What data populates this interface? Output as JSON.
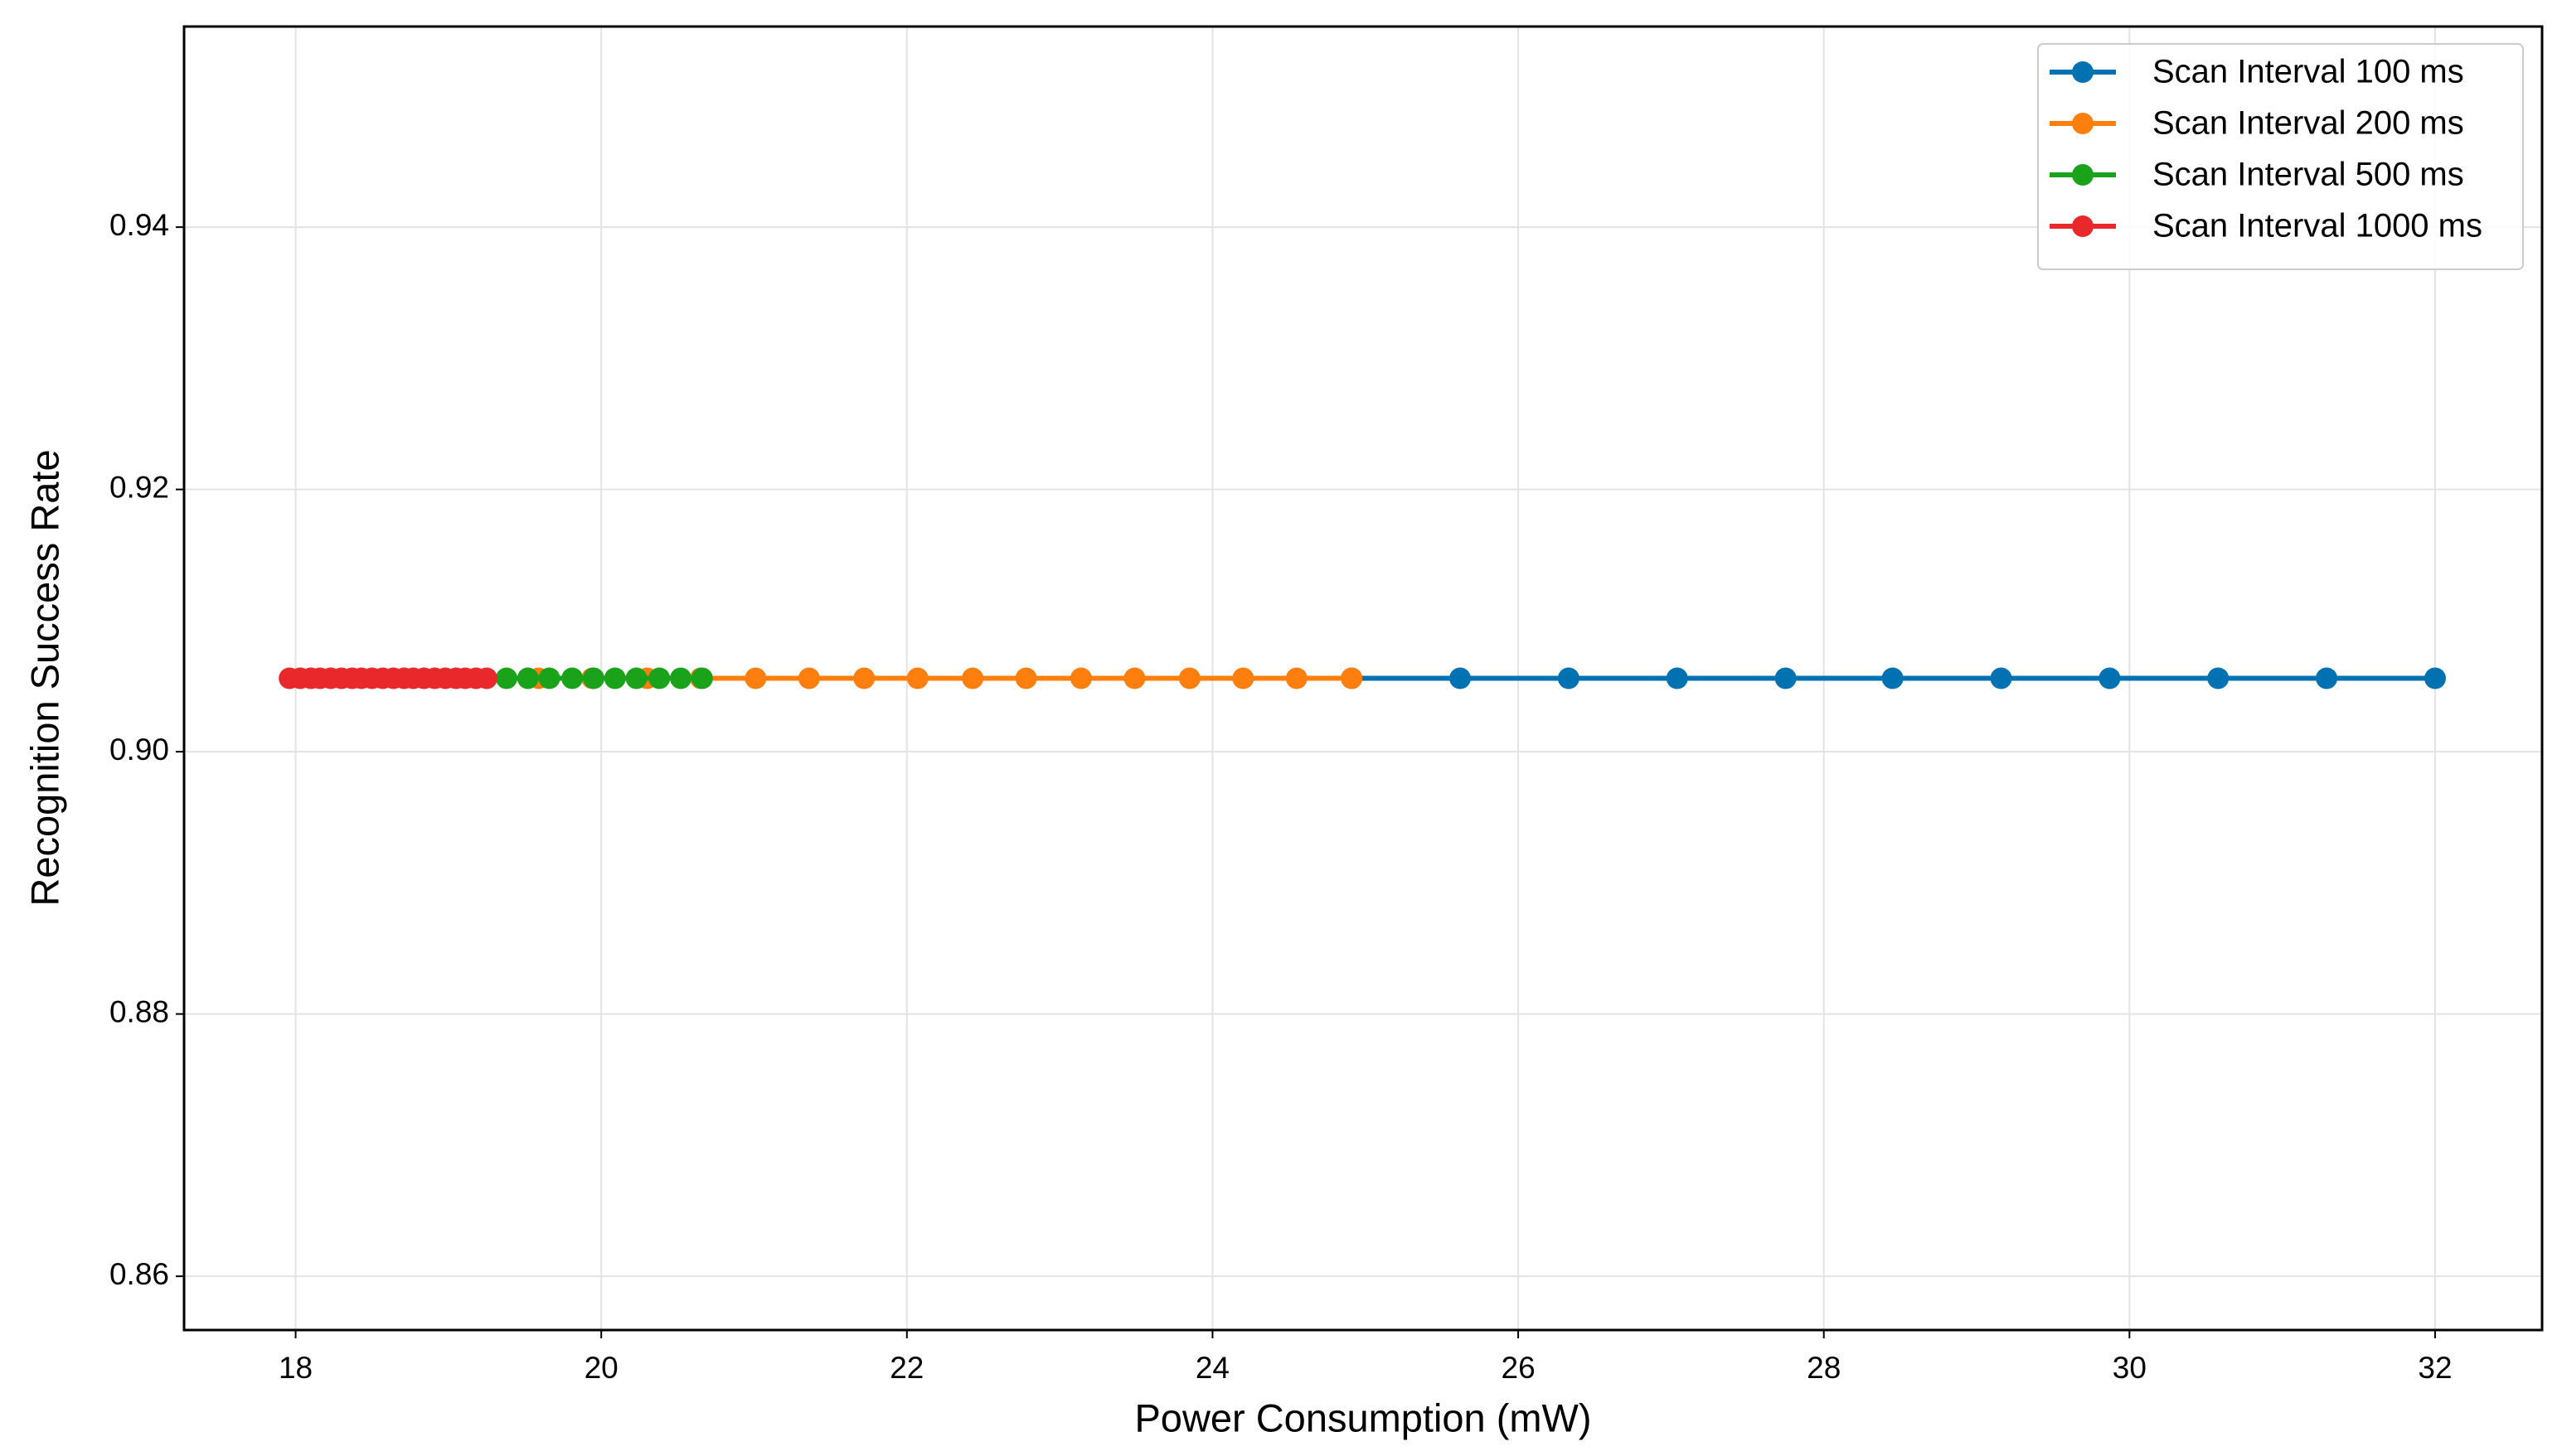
{
  "chart_data": {
    "type": "line",
    "x_label": "Power Consumption (mW)",
    "y_label": "Recognition Success Rate",
    "xlim": [
      17.27,
      32.7
    ],
    "ylim": [
      0.8559,
      0.9553
    ],
    "xticks": [
      18,
      20,
      22,
      24,
      26,
      28,
      30,
      32
    ],
    "yticks": [
      0.86,
      0.88,
      {
        "value": 0.9,
        "label": "0.90"
      },
      0.92,
      0.94
    ],
    "grid": true,
    "legend": "upper right",
    "series": [
      {
        "name": "Scan Interval 100 ms",
        "color": "#0072b2",
        "x": [
          24.91,
          25.62,
          26.33,
          27.04,
          27.75,
          28.45,
          29.16,
          29.87,
          30.58,
          31.29,
          32.0
        ],
        "values": [
          0.9056,
          0.9056,
          0.9056,
          0.9056,
          0.9056,
          0.9056,
          0.9056,
          0.9056,
          0.9056,
          0.9056,
          0.9056
        ]
      },
      {
        "name": "Scan Interval 200 ms",
        "color": "#ff7f0e",
        "x": [
          19.59,
          19.94,
          20.3,
          20.65,
          21.01,
          21.36,
          21.72,
          22.07,
          22.43,
          22.78,
          23.14,
          23.49,
          23.85,
          24.2,
          24.55,
          24.91
        ],
        "values": [
          0.9056,
          0.9056,
          0.9056,
          0.9056,
          0.9056,
          0.9056,
          0.9056,
          0.9056,
          0.9056,
          0.9056,
          0.9056,
          0.9056,
          0.9056,
          0.9056,
          0.9056,
          0.9056
        ]
      },
      {
        "name": "Scan Interval 500 ms",
        "color": "#1aa31a",
        "x": [
          19.38,
          19.52,
          19.66,
          19.81,
          19.95,
          20.09,
          20.23,
          20.38,
          20.52,
          20.66
        ],
        "values": [
          0.9056,
          0.9056,
          0.9056,
          0.9056,
          0.9056,
          0.9056,
          0.9056,
          0.9056,
          0.9056,
          0.9056
        ]
      },
      {
        "name": "Scan Interval 1000 ms",
        "color": "#e8282a",
        "x": [
          17.96,
          18.03,
          18.1,
          18.16,
          18.23,
          18.3,
          18.37,
          18.43,
          18.5,
          18.57,
          18.64,
          18.71,
          18.77,
          18.84,
          18.91,
          18.98,
          19.05,
          19.11,
          19.18,
          19.25
        ],
        "values": [
          0.9056,
          0.9056,
          0.9056,
          0.9056,
          0.9056,
          0.9056,
          0.9056,
          0.9056,
          0.9056,
          0.9056,
          0.9056,
          0.9056,
          0.9056,
          0.9056,
          0.9056,
          0.9056,
          0.9056,
          0.9056,
          0.9056,
          0.9056
        ]
      }
    ]
  }
}
